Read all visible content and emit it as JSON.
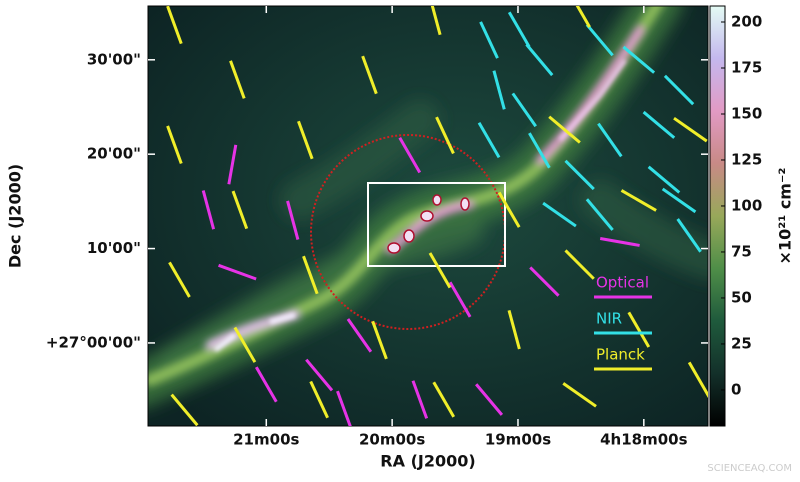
{
  "chart_data": {
    "type": "vector-map",
    "x_label": "RA (J2000)",
    "y_label": "Dec (J2000)",
    "xlim": [
      21.94,
      17.49
    ],
    "ylim": [
      -8.8,
      35.7
    ],
    "xticks": [
      {
        "value": 21,
        "label": "21m00s"
      },
      {
        "value": 20,
        "label": "20m00s"
      },
      {
        "value": 19,
        "label": "19m00s"
      },
      {
        "value": 18,
        "label": "4h18m00s"
      }
    ],
    "yticks": [
      {
        "value": 30,
        "label": "30'00\""
      },
      {
        "value": 20,
        "label": "20'00\""
      },
      {
        "value": 10,
        "label": "10'00\""
      },
      {
        "value": 0,
        "label": "+27°00'00\""
      }
    ],
    "colorbar": {
      "label": "×10²¹ cm⁻²",
      "lim": [
        -19.6,
        208.7
      ],
      "ticks": [
        0,
        25,
        50,
        75,
        100,
        125,
        150,
        175,
        200
      ],
      "colormap": [
        "#000000",
        "#13302a",
        "#1f5a3c",
        "#4f8e48",
        "#98a85a",
        "#c88a86",
        "#e29ac4",
        "#c4b8ee",
        "#e4fbf4"
      ]
    },
    "series": [
      {
        "name": "Optical",
        "color": "#e633e6",
        "x": [
          21.27,
          21.46,
          20.79,
          21.23,
          19.86,
          18.79,
          18.19,
          20.26,
          19.46,
          21.0,
          20.58,
          19.78,
          19.23,
          20.38
        ],
        "y": [
          18.9,
          14.1,
          13.0,
          7.5,
          19.9,
          6.5,
          10.7,
          0.8,
          4.6,
          -4.4,
          -3.4,
          -6.0,
          -6.0,
          -7.1
        ],
        "angle": [
          -10,
          15,
          15,
          70,
          30,
          45,
          80,
          35,
          30,
          30,
          40,
          20,
          40,
          20
        ]
      },
      {
        "name": "NIR",
        "color": "#33e0e6",
        "x": [
          19.23,
          18.99,
          18.83,
          18.35,
          18.04,
          19.23,
          18.95,
          18.83,
          18.27,
          18.51,
          18.35,
          17.84,
          17.72,
          17.88,
          17.64,
          17.72,
          18.67,
          19.15
        ],
        "y": [
          32.1,
          33.2,
          30.0,
          32.1,
          30.0,
          21.5,
          24.7,
          20.4,
          21.5,
          17.8,
          13.6,
          17.3,
          15.1,
          23.1,
          11.4,
          26.8,
          13.6,
          26.8
        ],
        "angle": [
          25,
          30,
          40,
          40,
          50,
          30,
          35,
          30,
          35,
          45,
          40,
          50,
          55,
          50,
          35,
          45,
          55,
          15
        ]
      },
      {
        "name": "Planck",
        "color": "#f0ee2a",
        "x": [
          21.73,
          21.23,
          20.18,
          19.66,
          20.69,
          21.73,
          21.21,
          21.69,
          20.65,
          19.62,
          19.58,
          19.07,
          18.51,
          18.04,
          18.63,
          18.04,
          20.1,
          21.17,
          20.58,
          19.59,
          18.51,
          19.03,
          17.63,
          21.65,
          17.56,
          18.51
        ],
        "y": [
          33.7,
          27.9,
          28.4,
          34.7,
          21.5,
          21.0,
          14.1,
          6.7,
          7.2,
          7.7,
          22.0,
          14.1,
          8.3,
          1.4,
          22.6,
          15.1,
          0.3,
          -0.2,
          -6.0,
          -6.0,
          -5.5,
          1.4,
          22.6,
          -7.1,
          -3.9,
          35.3
        ],
        "angle": [
          20,
          20,
          20,
          15,
          20,
          20,
          20,
          30,
          20,
          30,
          25,
          30,
          45,
          30,
          50,
          60,
          20,
          30,
          25,
          30,
          55,
          15,
          55,
          40,
          30,
          30
        ]
      }
    ],
    "watermark": "SCIENCEAQ.COM"
  }
}
